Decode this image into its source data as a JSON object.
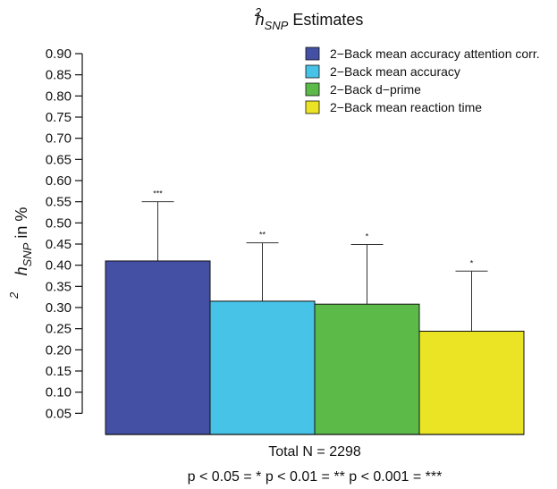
{
  "chart_data": {
    "type": "bar",
    "title_main": "h",
    "title_sup": "2",
    "title_sub": "SNP",
    "title_rest": " Estimates",
    "ylabel_main": "h",
    "ylabel_sup": "2",
    "ylabel_sub": "SNP",
    "ylabel_rest": " in %",
    "xlabel": "Total N = 2298",
    "note": "p < 0.05 = * p < 0.01 = ** p < 0.001 = ***",
    "ylim": [
      0.0,
      0.9
    ],
    "yticks": [
      "0.05",
      "0.10",
      "0.15",
      "0.20",
      "0.25",
      "0.30",
      "0.35",
      "0.40",
      "0.45",
      "0.50",
      "0.55",
      "0.60",
      "0.65",
      "0.70",
      "0.75",
      "0.80",
      "0.85",
      "0.90"
    ],
    "series": [
      {
        "name": "2−Back mean accuracy attention corr.",
        "value": 0.41,
        "error_upper": 0.55,
        "significance": "***",
        "color": "#4350a3"
      },
      {
        "name": "2−Back mean accuracy",
        "value": 0.315,
        "error_upper": 0.453,
        "significance": "**",
        "color": "#46c3e6"
      },
      {
        "name": "2−Back d−prime",
        "value": 0.308,
        "error_upper": 0.449,
        "significance": "*",
        "color": "#5cba48"
      },
      {
        "name": "2−Back mean reaction time",
        "value": 0.244,
        "error_upper": 0.386,
        "significance": "*",
        "color": "#ebe424"
      }
    ],
    "legend_position": "top-right",
    "grid": false
  }
}
